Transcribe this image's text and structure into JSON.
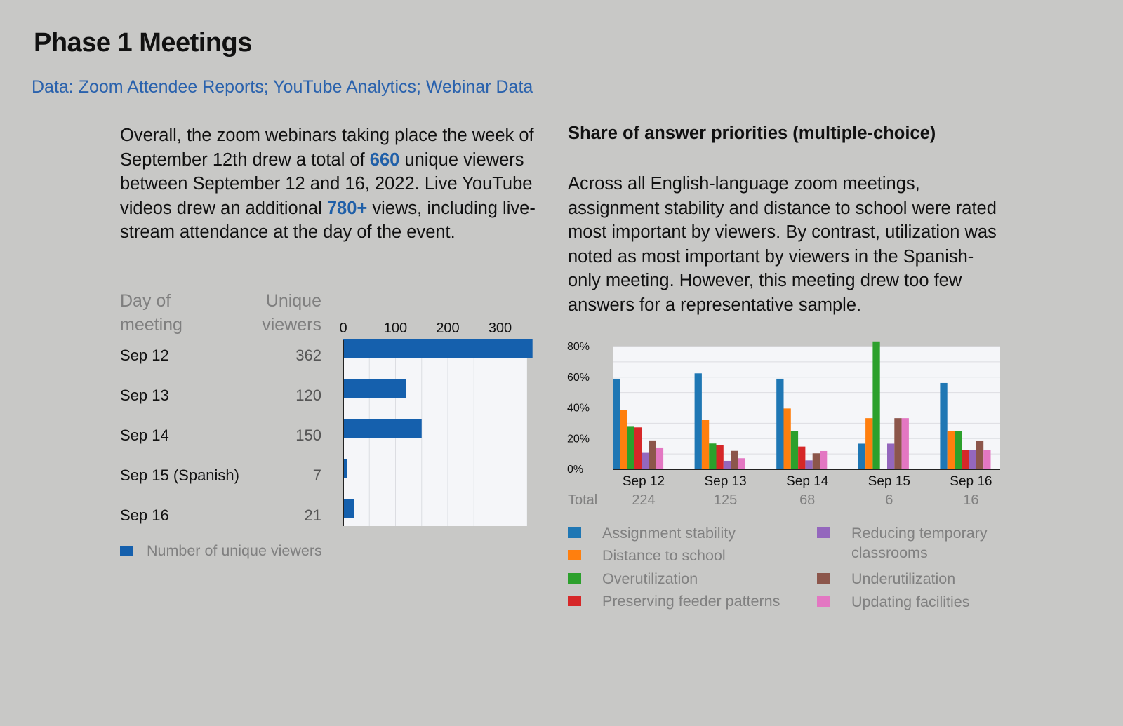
{
  "header": {
    "title": "Phase 1 Meetings",
    "subtitle": "Data: Zoom Attendee Reports; YouTube Analytics; Webinar Data"
  },
  "left_text": {
    "part1": "Overall, the zoom webinars taking place the week of September 12th drew a total of ",
    "hl1": "660",
    "part2": " unique viewers between September 12 and 16, 2022. Live YouTube videos drew an additional ",
    "hl2": "780+",
    "part3": " views, including live-stream attendance at the day of the event."
  },
  "right_text": {
    "heading": "Share of answer priorities (multiple-choice)",
    "body": "Across all English-language zoom meetings, assignment stability and distance to school were rated most important by viewers. By contrast, utilization was noted as most important by viewers in the Spanish-only meeting. However, this meeting drew too few answers for a representative sample."
  },
  "colors": {
    "accent": "#1f5fa8",
    "viewer_bar": "#1560ad"
  },
  "chart_data": [
    {
      "type": "bar",
      "orientation": "horizontal",
      "col_header_day": "Day of meeting",
      "col_header_value": "Unique viewers",
      "categories": [
        "Sep 12",
        "Sep 13",
        "Sep 14",
        "Sep 15 (Spanish)",
        "Sep 16"
      ],
      "values": [
        362,
        120,
        150,
        7,
        21
      ],
      "value_labels": [
        "362",
        "120",
        "150",
        "7",
        "21"
      ],
      "x_ticks": [
        "0",
        "100",
        "200",
        "300"
      ],
      "xlim": [
        0,
        350
      ],
      "legend": "Number of unique viewers",
      "grid": true
    },
    {
      "type": "bar",
      "orientation": "vertical",
      "title": "Share of answer priorities (multiple-choice)",
      "categories": [
        "Sep 12",
        "Sep 13",
        "Sep 14",
        "Sep 15",
        "Sep 16"
      ],
      "totals_label": "Total",
      "totals": [
        "224",
        "125",
        "68",
        "6",
        "16"
      ],
      "y_ticks": [
        "0%",
        "20%",
        "40%",
        "60%",
        "80%"
      ],
      "ylim": [
        0,
        80
      ],
      "grid": true,
      "series": [
        {
          "name": "Assignment stability",
          "color": "#1f77b4",
          "values": [
            59,
            62.5,
            59,
            16.7,
            56.25
          ]
        },
        {
          "name": "Distance to school",
          "color": "#ff7f0e",
          "values": [
            38.4,
            32,
            39.6,
            33.3,
            25
          ]
        },
        {
          "name": "Overutilization",
          "color": "#2ca02c",
          "values": [
            27.7,
            16.8,
            25,
            83.3,
            25
          ]
        },
        {
          "name": "Preserving feeder patterns",
          "color": "#d62728",
          "values": [
            27.3,
            16,
            14.8,
            0,
            12.5
          ]
        },
        {
          "name": "Reducing temporary classrooms",
          "color": "#9467bd",
          "values": [
            10.7,
            5.5,
            5.8,
            16.7,
            12.5
          ]
        },
        {
          "name": "Underutilization",
          "color": "#8c564b",
          "values": [
            18.8,
            12,
            10.4,
            33.3,
            18.75
          ]
        },
        {
          "name": "Updating facilities",
          "color": "#e377c2",
          "values": [
            14.2,
            7.2,
            11.9,
            33.3,
            12.5
          ]
        }
      ],
      "legend_lines": {
        "reducing_1": "Reducing temporary",
        "reducing_2": "classrooms"
      }
    }
  ]
}
